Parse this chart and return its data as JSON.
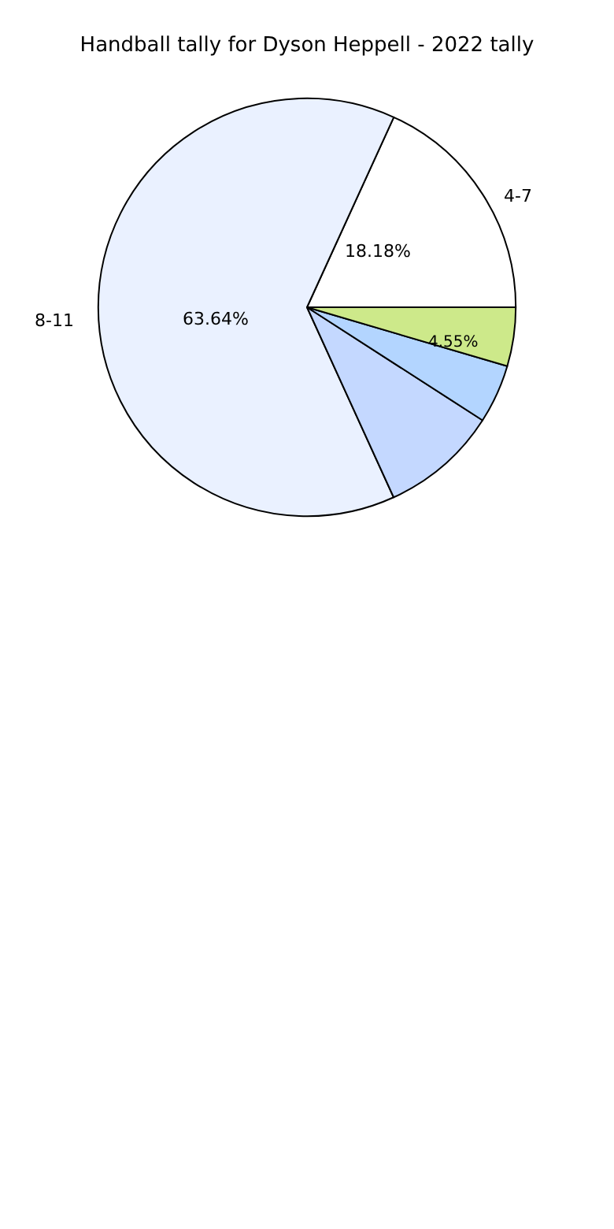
{
  "chart_data": {
    "type": "pie",
    "title": "Handball tally for Dyson Heppell - 2022 tally",
    "categories": [
      "4-7",
      "8-11",
      null,
      null,
      null
    ],
    "values": [
      18.18,
      63.64,
      9.09,
      4.55,
      4.55
    ],
    "value_labels": [
      "18.18%",
      "63.64%",
      null,
      null,
      "4.55%"
    ],
    "colors": [
      "#ffffff",
      "#eaf1ff",
      "#c4d8ff",
      "#b3d5ff",
      "#cde98a"
    ]
  }
}
